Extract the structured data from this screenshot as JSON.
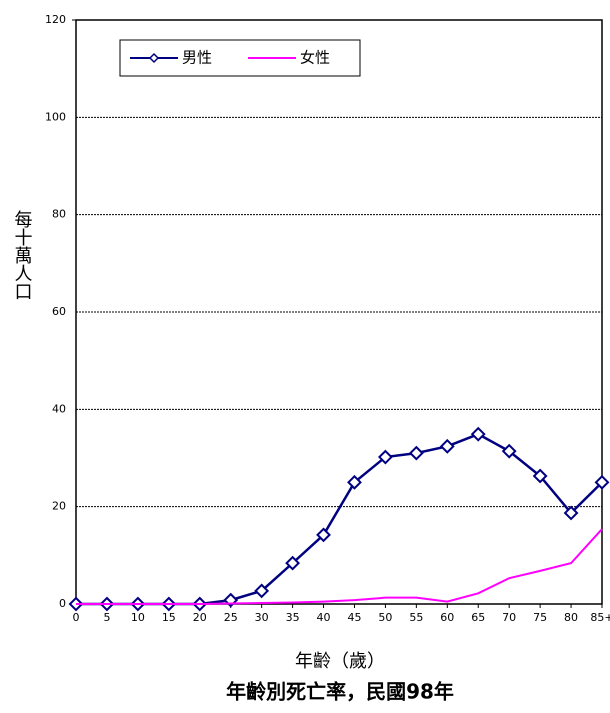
{
  "chart_data": {
    "type": "line",
    "title": "年齡別死亡率，民國98年",
    "x_label": "年齡（歲）",
    "y_label": "每十萬人口",
    "categories": [
      "0",
      "5",
      "10",
      "15",
      "20",
      "25",
      "30",
      "35",
      "40",
      "45",
      "50",
      "55",
      "60",
      "65",
      "70",
      "75",
      "80",
      "85+"
    ],
    "series": [
      {
        "name": "男性",
        "color": "#000080",
        "marker": "diamond",
        "values": [
          0,
          0,
          0,
          0,
          0,
          0.8,
          2.7,
          8.4,
          14.2,
          25,
          30.2,
          31,
          32.4,
          34.9,
          31.4,
          26.3,
          18.7,
          25
        ]
      },
      {
        "name": "女性",
        "color": "#ff00ff",
        "values": [
          0,
          0,
          0,
          0,
          0,
          0.1,
          0.2,
          0.3,
          0.5,
          0.8,
          1.3,
          1.3,
          0.5,
          2.2,
          5.3,
          6.8,
          8.4,
          15.4
        ]
      }
    ],
    "ylim": [
      0,
      120
    ],
    "yticks": [
      0,
      20,
      40,
      60,
      80,
      100,
      120
    ],
    "grid": true,
    "legend": "top-left"
  }
}
